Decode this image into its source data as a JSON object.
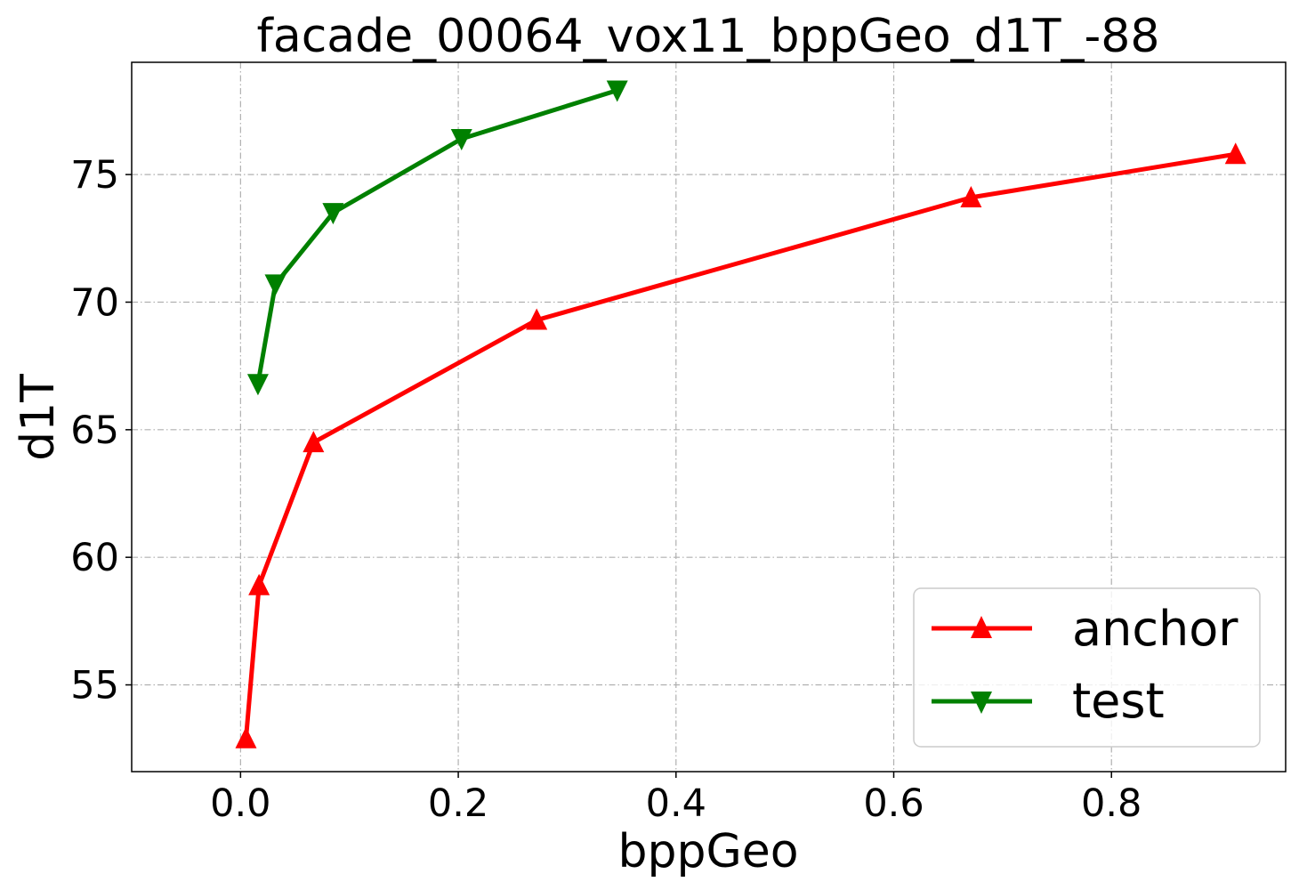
{
  "chart_data": {
    "type": "line",
    "title": "facade_00064_vox11_bppGeo_d1T_-88",
    "xlabel": "bppGeo",
    "ylabel": "d1T",
    "xlim": [
      -0.1,
      0.96
    ],
    "ylim": [
      51.6,
      79.4
    ],
    "xticks": [
      0.0,
      0.2,
      0.4,
      0.6,
      0.8
    ],
    "xtick_labels": [
      "0.0",
      "0.2",
      "0.4",
      "0.6",
      "0.8"
    ],
    "yticks": [
      55,
      60,
      65,
      70,
      75
    ],
    "ytick_labels": [
      "55",
      "60",
      "65",
      "70",
      "75"
    ],
    "grid": true,
    "legend_position": "lower-right",
    "series": [
      {
        "name": "anchor",
        "color": "#ff0000",
        "marker": "triangle-up",
        "x": [
          0.005,
          0.017,
          0.067,
          0.272,
          0.671,
          0.914
        ],
        "y": [
          52.9,
          58.9,
          64.5,
          69.3,
          74.1,
          75.8
        ]
      },
      {
        "name": "test",
        "color": "#008000",
        "marker": "triangle-down",
        "x": [
          0.016,
          0.032,
          0.085,
          0.203,
          0.346
        ],
        "y": [
          66.8,
          70.7,
          73.5,
          76.4,
          78.3
        ]
      }
    ]
  }
}
